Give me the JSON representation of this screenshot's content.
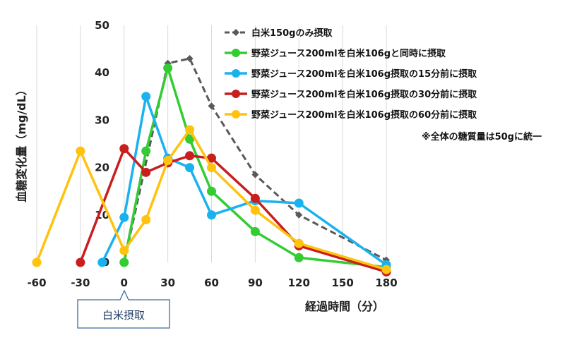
{
  "chart_data": {
    "type": "line",
    "xlabel": "経過時間（分）",
    "ylabel": "血糖変化量（mg/dL）",
    "xlim": [
      -60,
      180
    ],
    "ylim": [
      0,
      50
    ],
    "x_ticks": [
      "-60",
      "-30",
      "0",
      "30",
      "60",
      "90",
      "120",
      "150",
      "180"
    ],
    "y_ticks": [
      "0",
      "10",
      "20",
      "30",
      "40",
      "50"
    ],
    "vertical_grid": true,
    "horizontal_grid": false,
    "legend_position": "top-right",
    "note": "※全体の糖質量は50gに統一",
    "annotation": {
      "label": "白米摂取",
      "x": 0
    },
    "series": [
      {
        "name": "白米150gのみ摂取",
        "color": "#595959",
        "dashed": true,
        "marker": "diamond",
        "points": [
          [
            0,
            0
          ],
          [
            30,
            42
          ],
          [
            45,
            43
          ],
          [
            60,
            33
          ],
          [
            90,
            18.5
          ],
          [
            120,
            10
          ],
          [
            180,
            0.5
          ]
        ]
      },
      {
        "name": "野菜ジュース200mlを白米106gと同時に摂取",
        "color": "#33cc33",
        "dashed": false,
        "marker": "circle",
        "points": [
          [
            0,
            0
          ],
          [
            15,
            23.5
          ],
          [
            30,
            41
          ],
          [
            45,
            26
          ],
          [
            60,
            15
          ],
          [
            90,
            6.5
          ],
          [
            120,
            1
          ],
          [
            180,
            -1
          ]
        ]
      },
      {
        "name": "野菜ジュース200mlを白米106g摂取の15分前に摂取",
        "color": "#1ab2ee",
        "dashed": false,
        "marker": "circle",
        "points": [
          [
            -15,
            0
          ],
          [
            0,
            9.5
          ],
          [
            15,
            35
          ],
          [
            30,
            22
          ],
          [
            45,
            20
          ],
          [
            60,
            10
          ],
          [
            90,
            13
          ],
          [
            120,
            12.5
          ],
          [
            180,
            -0.5
          ]
        ]
      },
      {
        "name": "野菜ジュース200mlを白米106g摂取の30分前に摂取",
        "color": "#c81e1e",
        "dashed": false,
        "marker": "circle",
        "points": [
          [
            -30,
            0
          ],
          [
            0,
            24
          ],
          [
            15,
            19
          ],
          [
            30,
            21
          ],
          [
            45,
            22.5
          ],
          [
            60,
            22
          ],
          [
            90,
            13.5
          ],
          [
            120,
            3.5
          ],
          [
            180,
            -2
          ]
        ]
      },
      {
        "name": "野菜ジュース200mlを白米106g摂取の60分前に摂取",
        "color": "#ffc20e",
        "dashed": false,
        "marker": "circle",
        "points": [
          [
            -60,
            0
          ],
          [
            -30,
            23.5
          ],
          [
            0,
            2.5
          ],
          [
            15,
            9
          ],
          [
            30,
            21.5
          ],
          [
            45,
            28
          ],
          [
            60,
            20
          ],
          [
            90,
            11
          ],
          [
            120,
            4
          ],
          [
            180,
            -1.5
          ]
        ]
      }
    ]
  }
}
